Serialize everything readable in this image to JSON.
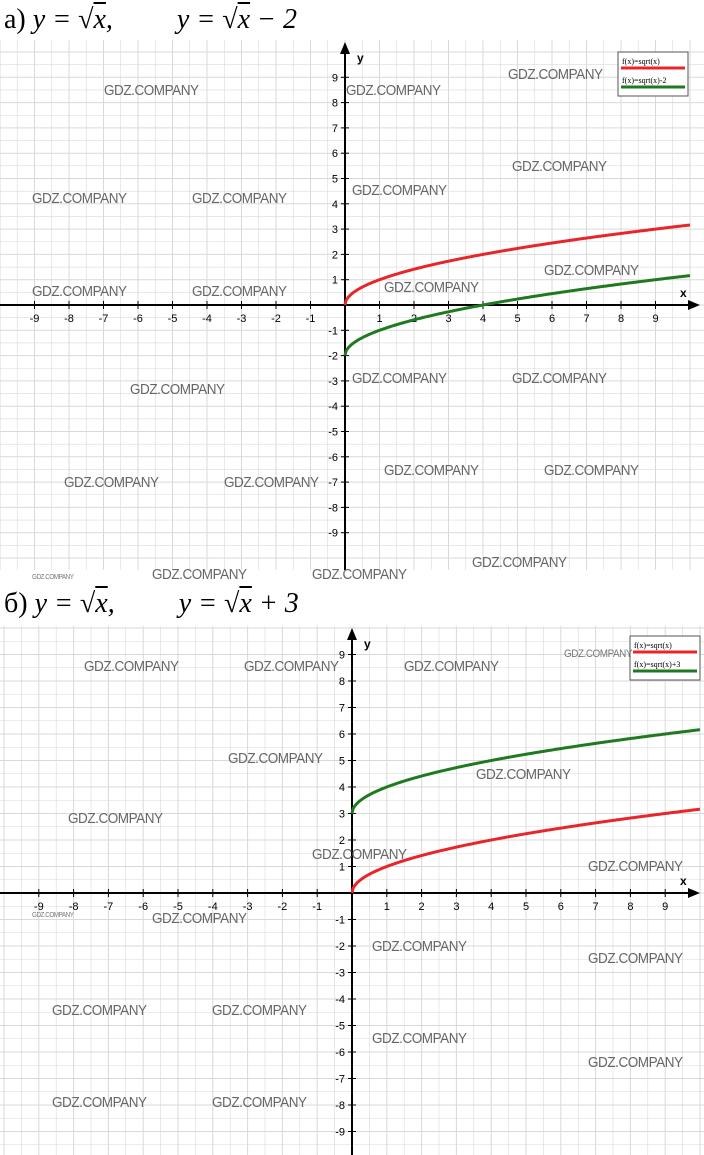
{
  "headings": [
    {
      "letter": "а)",
      "eq1": {
        "lhs": "y = ",
        "rad": "√",
        "arg": "x",
        "tail": ","
      },
      "eq2": {
        "lhs": "y = ",
        "rad": "√",
        "arg": "x",
        "tail": " − 2"
      }
    },
    {
      "letter": "б)",
      "eq1": {
        "lhs": "y = ",
        "rad": "√",
        "arg": "x",
        "tail": ","
      },
      "eq2": {
        "lhs": "y = ",
        "rad": "√",
        "arg": "x",
        "tail": " + 3"
      }
    }
  ],
  "watermark": "GDZ.COMPANY",
  "colors": {
    "red": "#e8262a",
    "green": "#1f7a1f",
    "grid": "#d9d9d9",
    "axis": "#000000"
  },
  "chart_data": [
    {
      "type": "line",
      "xlabel": "x",
      "ylabel": "y",
      "xlim": [
        -9.9,
        10
      ],
      "ylim": [
        -9.9,
        9.9
      ],
      "xticks": [
        -9,
        -8,
        -7,
        -6,
        -5,
        -4,
        -3,
        -2,
        -1,
        1,
        2,
        3,
        4,
        5,
        6,
        7,
        8,
        9
      ],
      "yticks": [
        -9,
        -8,
        -7,
        -6,
        -5,
        -4,
        -3,
        -2,
        -1,
        1,
        2,
        3,
        4,
        5,
        6,
        7,
        8,
        9
      ],
      "grid": true,
      "legend_position": "top-right",
      "series": [
        {
          "name": "f(x)=sqrt(x)",
          "color": "#e8262a",
          "formula": "sqrt(x)",
          "x": [
            0,
            0.25,
            1,
            2.25,
            4,
            6.25,
            9,
            10
          ],
          "y": [
            0,
            0.5,
            1,
            1.5,
            2,
            2.5,
            3,
            3.16
          ]
        },
        {
          "name": "f(x)=sqrt(x)-2",
          "color": "#1f7a1f",
          "formula": "sqrt(x)-2",
          "x": [
            0,
            0.25,
            1,
            2.25,
            4,
            6.25,
            9,
            10
          ],
          "y": [
            -2,
            -1.5,
            -1,
            -0.5,
            0,
            0.5,
            1,
            1.16
          ]
        }
      ]
    },
    {
      "type": "line",
      "xlabel": "x",
      "ylabel": "y",
      "xlim": [
        -9.9,
        10
      ],
      "ylim": [
        -9.9,
        9.9
      ],
      "xticks": [
        -9,
        -8,
        -7,
        -6,
        -5,
        -4,
        -3,
        -2,
        -1,
        1,
        2,
        3,
        4,
        5,
        6,
        7,
        8,
        9
      ],
      "yticks": [
        -9,
        -8,
        -7,
        -6,
        -5,
        -4,
        -3,
        -2,
        -1,
        1,
        2,
        3,
        4,
        5,
        6,
        7,
        8,
        9
      ],
      "grid": true,
      "legend_position": "top-right",
      "series": [
        {
          "name": "f(x)=sqrt(x)",
          "color": "#e8262a",
          "formula": "sqrt(x)",
          "x": [
            0,
            0.25,
            1,
            2.25,
            4,
            6.25,
            9,
            10
          ],
          "y": [
            0,
            0.5,
            1,
            1.5,
            2,
            2.5,
            3,
            3.16
          ]
        },
        {
          "name": "f(x)=sqrt(x)+3",
          "color": "#1f7a1f",
          "formula": "sqrt(x)+3",
          "x": [
            0,
            0.25,
            1,
            2.25,
            4,
            6.25,
            9,
            10
          ],
          "y": [
            3,
            3.5,
            4,
            4.5,
            5,
            5.5,
            6,
            6.16
          ]
        }
      ]
    }
  ]
}
